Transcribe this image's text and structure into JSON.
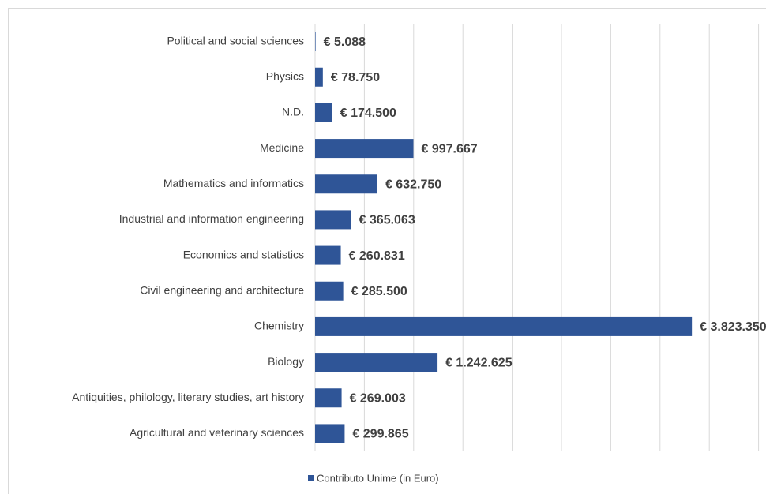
{
  "chart_data": {
    "type": "bar",
    "orientation": "horizontal",
    "categories": [
      "Political and social sciences",
      "Physics",
      "N.D.",
      "Medicine",
      "Mathematics and informatics",
      "Industrial and information engineering",
      "Economics and statistics",
      "Civil engineering and architecture",
      "Chemistry",
      "Biology",
      "Antiquities, philology, literary studies, art history",
      "Agricultural and veterinary sciences"
    ],
    "series": [
      {
        "name": "Contributo Unime (in Euro)",
        "color": "#2f5597",
        "values": [
          5088,
          78750,
          174500,
          997667,
          632750,
          365063,
          260831,
          285500,
          3823350,
          1242625,
          269003,
          299865
        ],
        "value_labels": [
          "€ 5.088",
          "€ 78.750",
          "€ 174.500",
          "€ 997.667",
          "€ 632.750",
          "€ 365.063",
          "€ 260.831",
          "€ 285.500",
          "€ 3.823.350",
          "€ 1.242.625",
          "€ 269.003",
          "€ 299.865"
        ]
      }
    ],
    "xlim": [
      0,
      4500000
    ],
    "xticks": [
      0,
      500000,
      1000000,
      1500000,
      2000000,
      2500000,
      3000000,
      3500000,
      4000000,
      4500000
    ],
    "grid": true,
    "legend": "bottom"
  }
}
